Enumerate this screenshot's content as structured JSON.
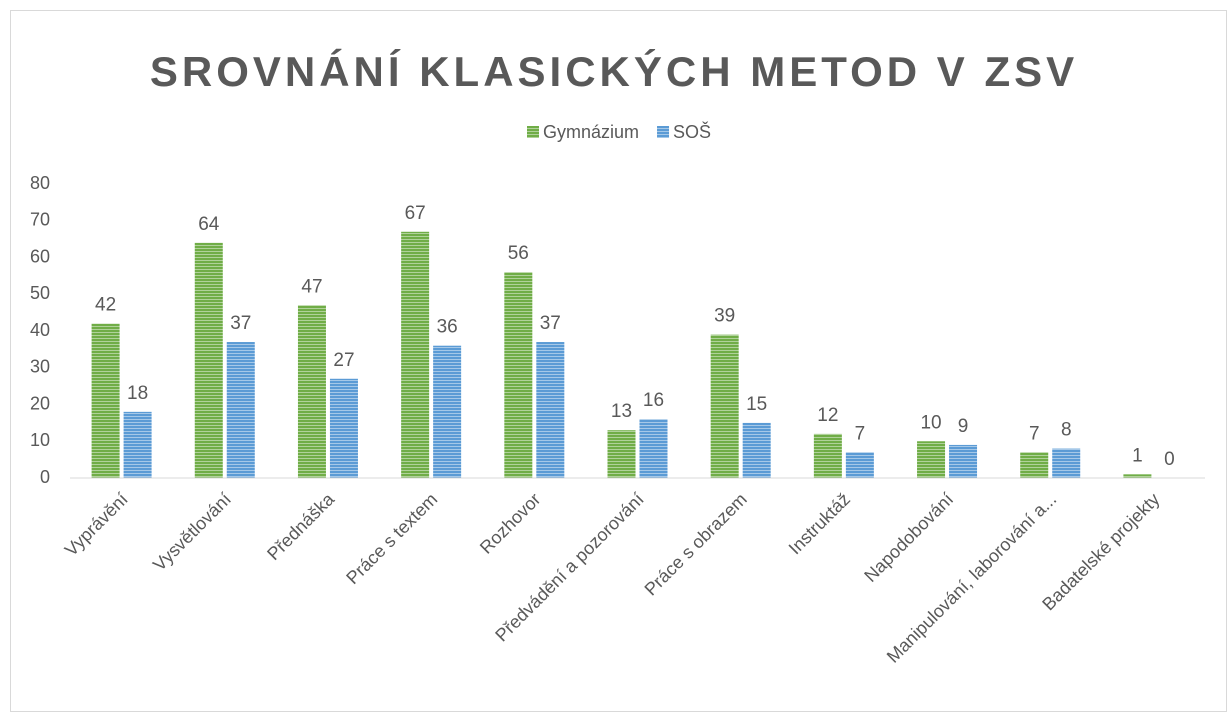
{
  "chart_data": {
    "type": "bar",
    "title": "SROVNÁNÍ KLASICKÝCH METOD V ZSV",
    "categories": [
      "Vyprávění",
      "Vysvětlování",
      "Přednáška",
      "Práce s textem",
      "Rozhovor",
      "Předvádění a pozorování",
      "Práce s obrazem",
      "Instruktáž",
      "Napodobování",
      "Manipulování, laborování a...",
      "Badatelské projekty"
    ],
    "series": [
      {
        "name": "Gymnázium",
        "color": "#70ad47",
        "values": [
          42,
          64,
          47,
          67,
          56,
          13,
          39,
          12,
          10,
          7,
          1
        ]
      },
      {
        "name": "SOŠ",
        "color": "#5b9bd5",
        "values": [
          18,
          37,
          27,
          36,
          37,
          16,
          15,
          7,
          9,
          8,
          0
        ]
      }
    ],
    "ylim": [
      0,
      80
    ],
    "yticks": [
      0,
      10,
      20,
      30,
      40,
      50,
      60,
      70,
      80
    ],
    "grid": false,
    "legend": "top"
  }
}
